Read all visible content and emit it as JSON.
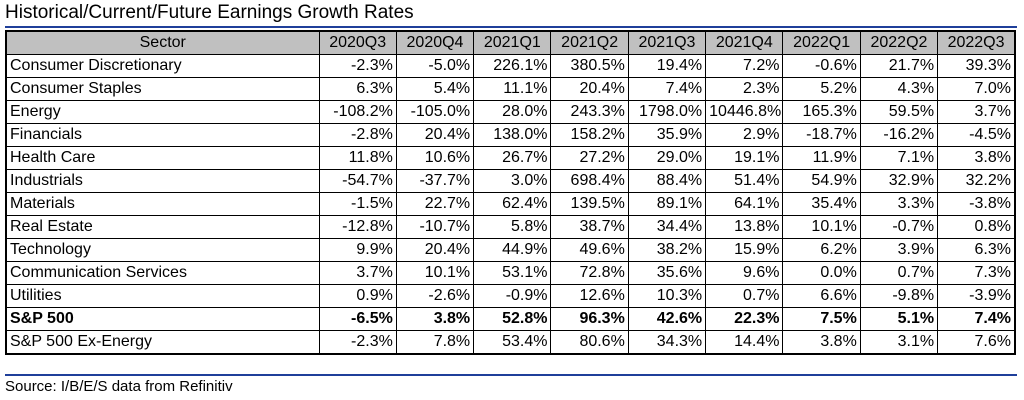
{
  "title": "Historical/Current/Future Earnings Growth Rates",
  "source": "Source: I/B/E/S data from Refinitiv",
  "colors": {
    "header_bg": "#c0c0c0",
    "rule": "#1f3f9a"
  },
  "table": {
    "headers": [
      "Sector",
      "2020Q3",
      "2020Q4",
      "2021Q1",
      "2021Q2",
      "2021Q3",
      "2021Q4",
      "2022Q1",
      "2022Q2",
      "2022Q3"
    ],
    "rows": [
      {
        "name": "Consumer Discretionary",
        "values": [
          "-2.3%",
          "-5.0%",
          "226.1%",
          "380.5%",
          "19.4%",
          "7.2%",
          "-0.6%",
          "21.7%",
          "39.3%"
        ]
      },
      {
        "name": "Consumer Staples",
        "values": [
          "6.3%",
          "5.4%",
          "11.1%",
          "20.4%",
          "7.4%",
          "2.3%",
          "5.2%",
          "4.3%",
          "7.0%"
        ]
      },
      {
        "name": "Energy",
        "values": [
          "-108.2%",
          "-105.0%",
          "28.0%",
          "243.3%",
          "1798.0%",
          "10446.8%",
          "165.3%",
          "59.5%",
          "3.7%"
        ]
      },
      {
        "name": "Financials",
        "values": [
          "-2.8%",
          "20.4%",
          "138.0%",
          "158.2%",
          "35.9%",
          "2.9%",
          "-18.7%",
          "-16.2%",
          "-4.5%"
        ]
      },
      {
        "name": "Health Care",
        "values": [
          "11.8%",
          "10.6%",
          "26.7%",
          "27.2%",
          "29.0%",
          "19.1%",
          "11.9%",
          "7.1%",
          "3.8%"
        ]
      },
      {
        "name": "Industrials",
        "values": [
          "-54.7%",
          "-37.7%",
          "3.0%",
          "698.4%",
          "88.4%",
          "51.4%",
          "54.9%",
          "32.9%",
          "32.2%"
        ]
      },
      {
        "name": "Materials",
        "values": [
          "-1.5%",
          "22.7%",
          "62.4%",
          "139.5%",
          "89.1%",
          "64.1%",
          "35.4%",
          "3.3%",
          "-3.8%"
        ]
      },
      {
        "name": "Real Estate",
        "values": [
          "-12.8%",
          "-10.7%",
          "5.8%",
          "38.7%",
          "34.4%",
          "13.8%",
          "10.1%",
          "-0.7%",
          "0.8%"
        ]
      },
      {
        "name": "Technology",
        "values": [
          "9.9%",
          "20.4%",
          "44.9%",
          "49.6%",
          "38.2%",
          "15.9%",
          "6.2%",
          "3.9%",
          "6.3%"
        ]
      },
      {
        "name": "Communication Services",
        "values": [
          "3.7%",
          "10.1%",
          "53.1%",
          "72.8%",
          "35.6%",
          "9.6%",
          "0.0%",
          "0.7%",
          "7.3%"
        ]
      },
      {
        "name": "Utilities",
        "values": [
          "0.9%",
          "-2.6%",
          "-0.9%",
          "12.6%",
          "10.3%",
          "0.7%",
          "6.6%",
          "-9.8%",
          "-3.9%"
        ]
      },
      {
        "name": "S&P 500",
        "bold": true,
        "values": [
          "-6.5%",
          "3.8%",
          "52.8%",
          "96.3%",
          "42.6%",
          "22.3%",
          "7.5%",
          "5.1%",
          "7.4%"
        ]
      },
      {
        "name": "S&P 500 Ex-Energy",
        "values": [
          "-2.3%",
          "7.8%",
          "53.4%",
          "80.6%",
          "34.3%",
          "14.4%",
          "3.8%",
          "3.1%",
          "7.6%"
        ]
      }
    ]
  }
}
